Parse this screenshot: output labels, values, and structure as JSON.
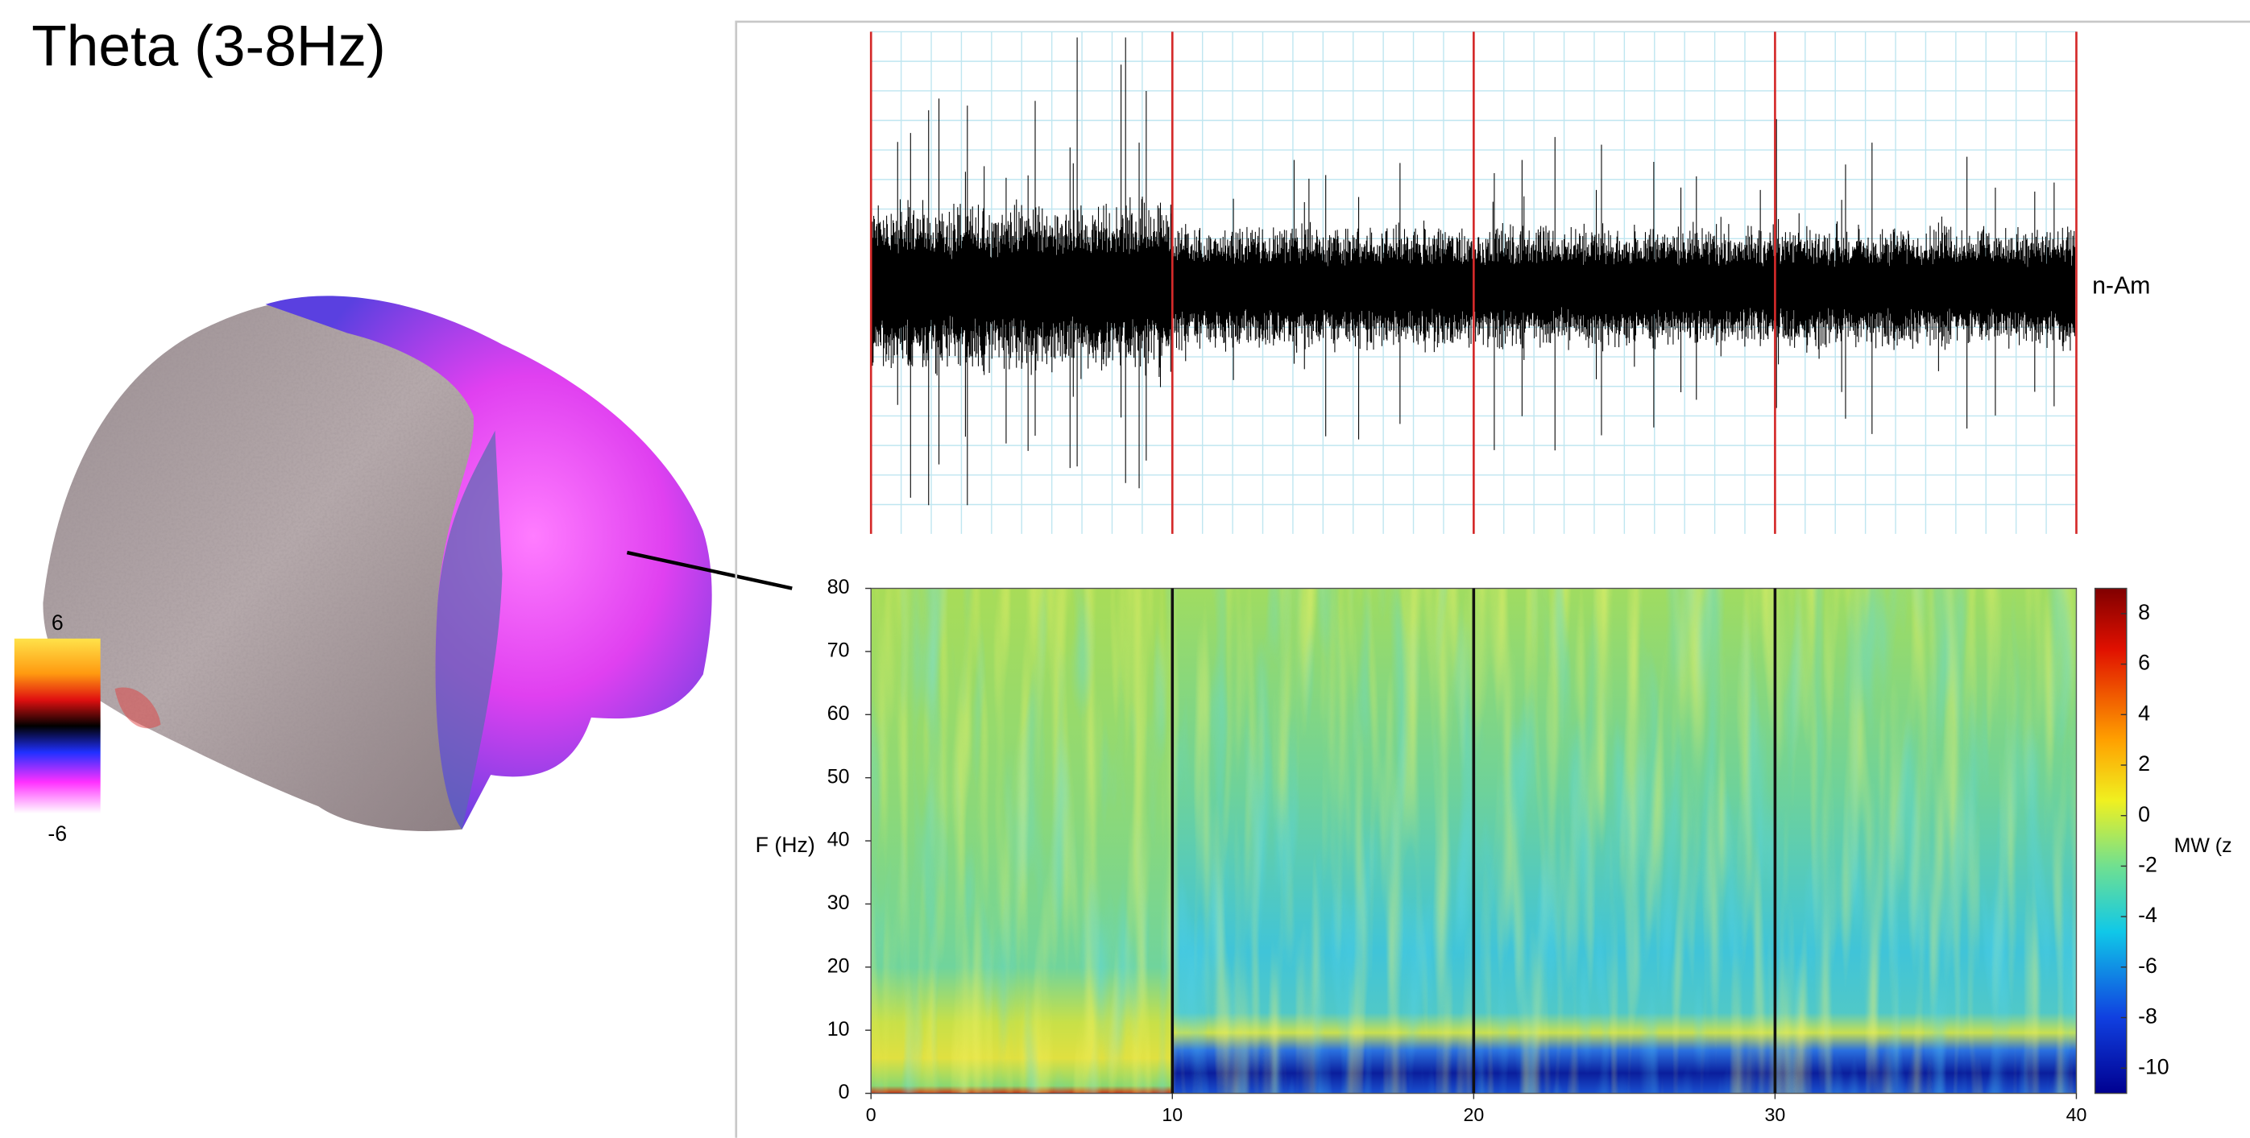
{
  "title": "Theta (3-8Hz)",
  "source_colorbar": {
    "clim": [
      -6,
      6
    ],
    "ticks": [
      6,
      -6
    ]
  },
  "chart_data": [
    {
      "type": "trace",
      "ylabel": "n-Am",
      "grid": true,
      "color": "#000000",
      "event_line_color": "#d42a2a"
    },
    {
      "type": "heatmap",
      "ylabel": "F (Hz)",
      "xlim": [
        0,
        40
      ],
      "ylim": [
        0,
        80
      ],
      "xticks": [
        0,
        10,
        20,
        30,
        40
      ],
      "yticks": [
        0,
        10,
        20,
        30,
        40,
        50,
        60,
        70,
        80
      ],
      "colorbar": {
        "clim": [
          -11,
          9
        ],
        "ticks": [
          8,
          6,
          4,
          2,
          0,
          -2,
          -4,
          -6,
          -8,
          -10
        ],
        "label": "MW (z"
      }
    }
  ]
}
